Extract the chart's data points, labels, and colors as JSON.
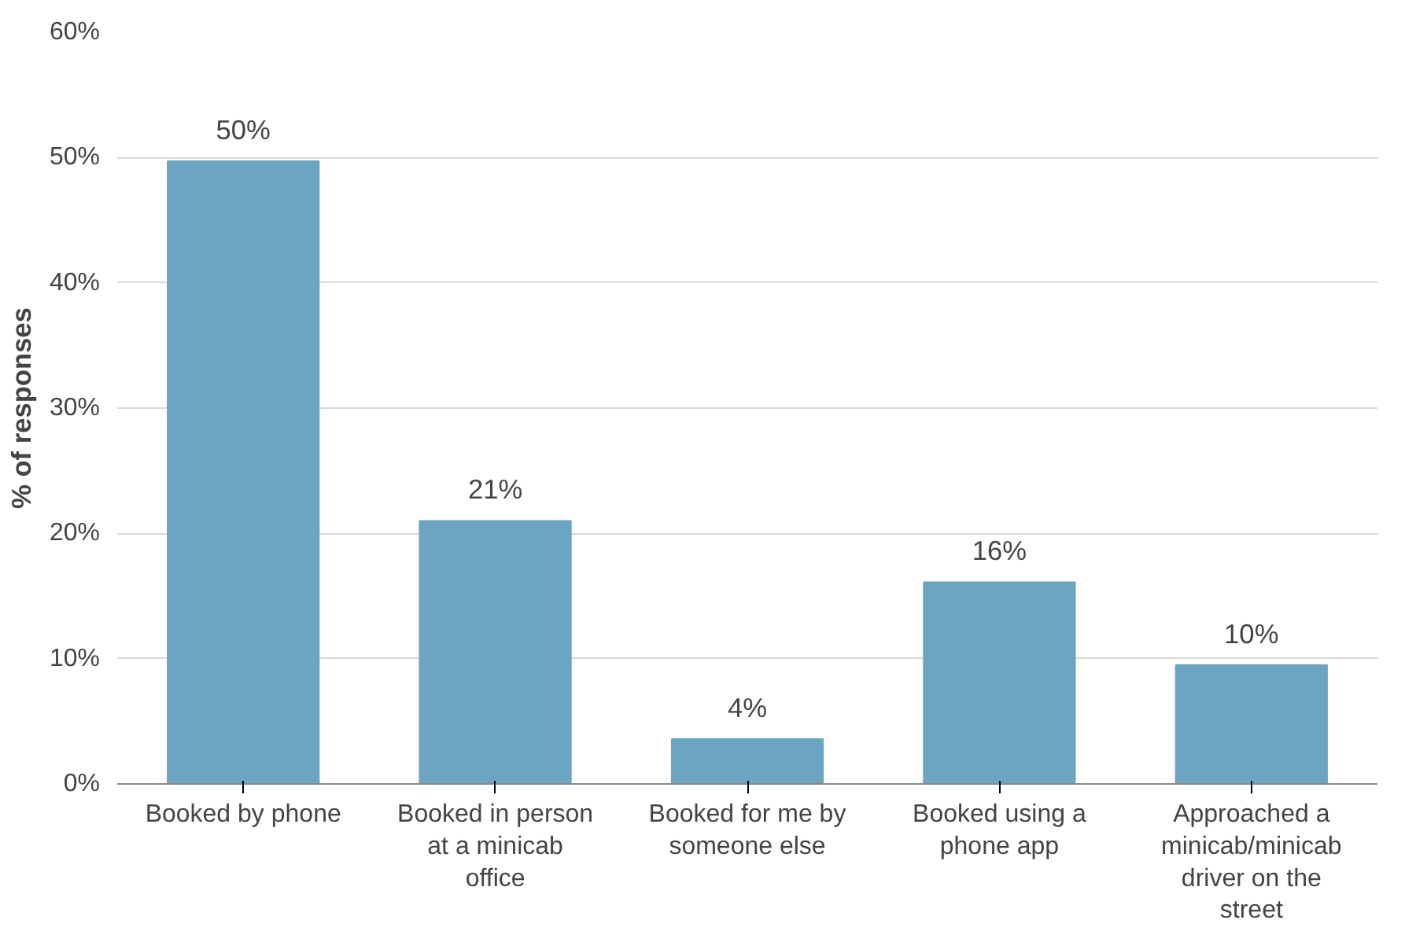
{
  "chart_data": {
    "type": "bar",
    "ylabel": "% of responses",
    "categories": [
      "Booked by phone",
      "Booked in person at a minicab office",
      "Booked for me by someone else",
      "Booked using a phone app",
      "Approached a minicab/minicab driver on the street"
    ],
    "values": [
      49.7,
      21.0,
      3.6,
      16.1,
      9.5
    ],
    "value_labels": [
      "50%",
      "21%",
      "4%",
      "16%",
      "10%"
    ],
    "color": "#6ba5c1",
    "ylim": [
      0,
      60
    ],
    "yticks": [
      {
        "value": 0,
        "label": "0%"
      },
      {
        "value": 10,
        "label": "10%"
      },
      {
        "value": 20,
        "label": "20%"
      },
      {
        "value": 30,
        "label": "30%"
      },
      {
        "value": 40,
        "label": "40%"
      },
      {
        "value": 50,
        "label": "50%"
      },
      {
        "value": 60,
        "label": "60%"
      }
    ],
    "grid": "y"
  }
}
